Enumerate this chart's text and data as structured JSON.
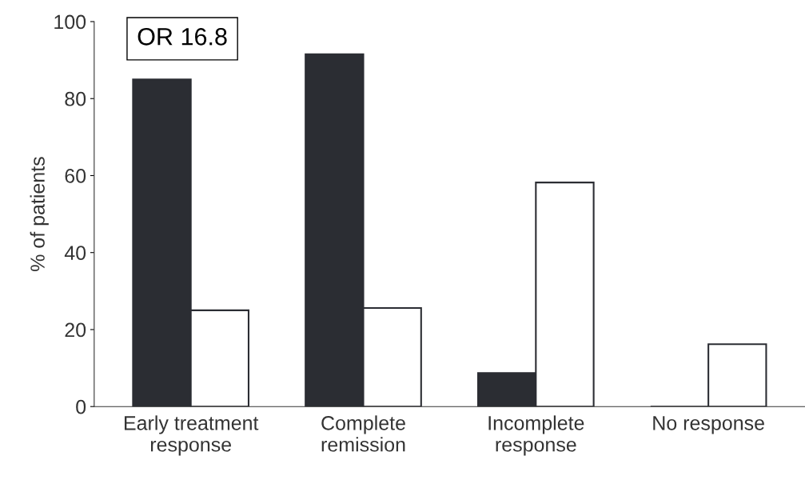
{
  "chart_data": {
    "type": "bar",
    "ylabel": "% of patients",
    "categories": [
      "Early treatment\nresponse",
      "Complete\nremission",
      "Incomplete\nresponse",
      "No response"
    ],
    "series": [
      {
        "color": "#2b2d33",
        "values": [
          85,
          91.5,
          8.7,
          0
        ]
      },
      {
        "color": "#ffffff",
        "values": [
          25,
          25.6,
          58.2,
          16.2
        ]
      }
    ],
    "ylim": [
      0,
      100
    ],
    "yticks": [
      0,
      20,
      40,
      60,
      80,
      100
    ],
    "grid": false,
    "legend": false,
    "annotations": [
      "OR 16.8"
    ]
  }
}
